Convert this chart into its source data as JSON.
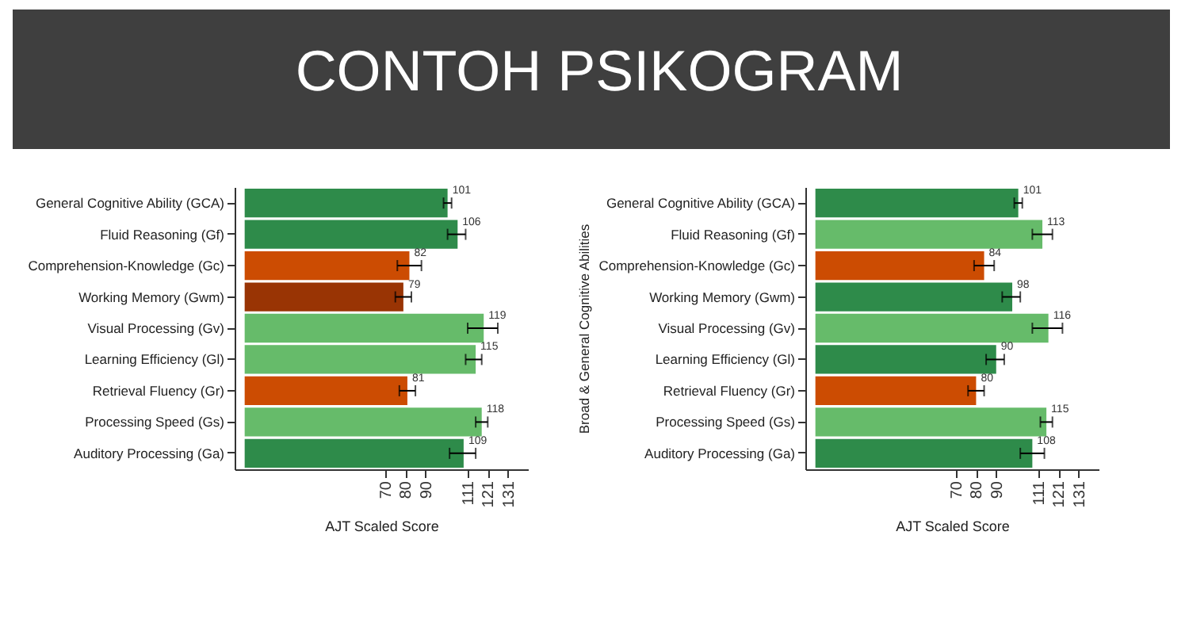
{
  "chart_data": [
    {
      "type": "bar",
      "orientation": "horizontal",
      "title": "CONTOH PSIKOGRAM",
      "xlabel": "AJT Scaled Score",
      "categories": [
        "General Cognitive Ability (GCA)",
        "Fluid Reasoning (Gf)",
        "Comprehension-Knowledge (Gc)",
        "Working Memory (Gwm)",
        "Visual Processing (Gv)",
        "Learning Efficiency (Gl)",
        "Retrieval Fluency (Gr)",
        "Processing Speed (Gs)",
        "Auditory Processing (Ga)"
      ],
      "values": [
        101,
        106,
        82,
        79,
        119,
        115,
        81,
        118,
        109
      ],
      "colors": [
        "#2e8b4a",
        "#2e8b4a",
        "#cc4c02",
        "#993404",
        "#66bb6a",
        "#66bb6a",
        "#cc4c02",
        "#66bb6a",
        "#2e8b4a"
      ],
      "errors": [
        [
          99,
          103
        ],
        [
          101,
          110
        ],
        [
          76,
          88
        ],
        [
          75,
          83
        ],
        [
          111,
          126
        ],
        [
          110,
          118
        ],
        [
          77,
          85
        ],
        [
          115,
          121
        ],
        [
          102,
          115
        ]
      ],
      "xlim": [
        -5,
        141
      ],
      "xticks": [
        70,
        80,
        90,
        111,
        121,
        131
      ],
      "data_labels": true,
      "grid": false
    },
    {
      "type": "bar",
      "orientation": "horizontal",
      "xlabel": "AJT Scaled Score",
      "ylabel": "Broad & General Cognitive Abilities",
      "categories": [
        "General Cognitive Ability (GCA)",
        "Fluid Reasoning (Gf)",
        "Comprehension-Knowledge (Gc)",
        "Working Memory (Gwm)",
        "Visual Processing (Gv)",
        "Learning Efficiency (Gl)",
        "Retrieval Fluency (Gr)",
        "Processing Speed (Gs)",
        "Auditory Processing (Ga)"
      ],
      "values": [
        101,
        113,
        84,
        98,
        116,
        90,
        80,
        115,
        108
      ],
      "colors": [
        "#2e8b4a",
        "#66bb6a",
        "#cc4c02",
        "#2e8b4a",
        "#66bb6a",
        "#2e8b4a",
        "#cc4c02",
        "#66bb6a",
        "#2e8b4a"
      ],
      "errors": [
        [
          99,
          103
        ],
        [
          108,
          118
        ],
        [
          79,
          89
        ],
        [
          93,
          102
        ],
        [
          108,
          123
        ],
        [
          85,
          94
        ],
        [
          76,
          84
        ],
        [
          112,
          118
        ],
        [
          102,
          114
        ]
      ],
      "xlim": [
        -5,
        141
      ],
      "xticks": [
        70,
        80,
        90,
        111,
        121,
        131
      ],
      "data_labels": true,
      "grid": false
    }
  ]
}
